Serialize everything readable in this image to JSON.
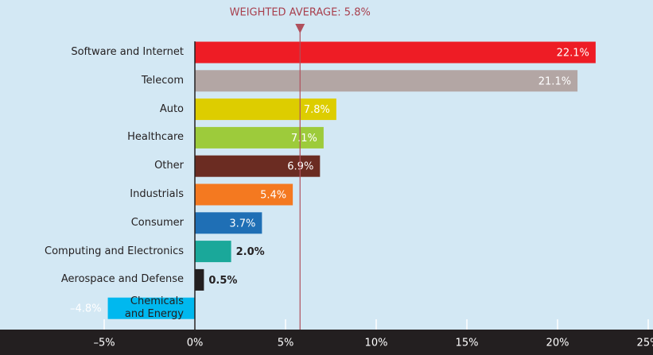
{
  "chart_data": {
    "type": "bar",
    "orientation": "horizontal",
    "categories": [
      "Software and Internet",
      "Telecom",
      "Auto",
      "Healthcare",
      "Other",
      "Industrials",
      "Consumer",
      "Computing and Electronics",
      "Aerospace and Defense",
      "Chemicals\nand Energy"
    ],
    "values": [
      22.1,
      21.1,
      7.8,
      7.1,
      6.9,
      5.4,
      3.7,
      2.0,
      0.5,
      -4.8
    ],
    "value_labels": [
      "22.1%",
      "21.1%",
      "7.8%",
      "7.1%",
      "6.9%",
      "5.4%",
      "3.7%",
      "2.0%",
      "0.5%",
      "–4.8%"
    ],
    "colors": [
      "#ee1c25",
      "#b3a6a4",
      "#ddcd00",
      "#9dcb3b",
      "#6b2c22",
      "#f47920",
      "#1f6fb5",
      "#1aa89a",
      "#231f20",
      "#00b8ef"
    ],
    "xlim": [
      -5,
      25
    ],
    "xticks": [
      {
        "value": -5,
        "label": "–5%"
      },
      {
        "value": 0,
        "label": "0%"
      },
      {
        "value": 5,
        "label": "5%"
      },
      {
        "value": 10,
        "label": "10%"
      },
      {
        "value": 15,
        "label": "15%"
      },
      {
        "value": 20,
        "label": "20%"
      },
      {
        "value": 25,
        "label": "25%"
      }
    ],
    "reference_line": {
      "value": 5.8,
      "label": "WEIGHTED AVERAGE: 5.8%"
    }
  }
}
